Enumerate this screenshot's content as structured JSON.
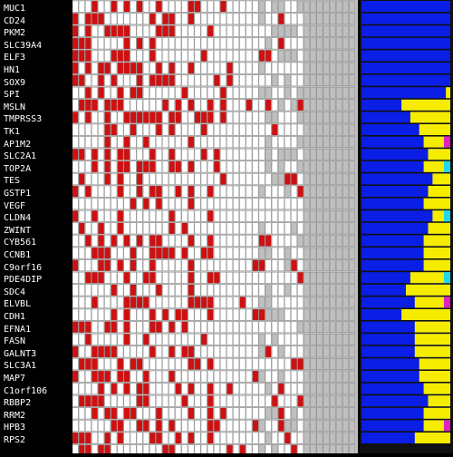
{
  "colors": {
    "background": "#000000",
    "label_text": "#ffffff",
    "cell_present": "#d01010",
    "cell_absent": "#ffffff",
    "cell_grey_bg": "#bfbfbf",
    "grid_line": "#808080",
    "bar_base": "#0a1ee6",
    "bar_segment": "#f5ec00",
    "bar_accent_cyan": "#20d8e8",
    "bar_accent_magenta": "#e020c0"
  },
  "genes": [
    "MUC1",
    "CD24",
    "PKM2",
    "SLC39A4",
    "ELF3",
    "HN1",
    "SOX9",
    "SPI",
    "MSLN",
    "TMPRSS3",
    "TK1",
    "AP1M2",
    "SLC2A1",
    "TOP2A",
    "TES",
    "GSTP1",
    "VEGF",
    "CLDN4",
    "ZWINT",
    "CYB561",
    "CCNB1",
    "C9orf16",
    "PDE4DIP",
    "SDC4",
    "ELVBL",
    "CDH1",
    "EFNA1",
    "FASN",
    "GALNT3",
    "SLC3A1",
    "MAP7",
    "C1orf106",
    "RBBP2",
    "RRM2",
    "HPB3",
    "RPS2"
  ],
  "bars": [
    {
      "yellow": 0,
      "accent": null
    },
    {
      "yellow": 0,
      "accent": null
    },
    {
      "yellow": 0,
      "accent": null
    },
    {
      "yellow": 0,
      "accent": null
    },
    {
      "yellow": 0,
      "accent": null
    },
    {
      "yellow": 0,
      "accent": null
    },
    {
      "yellow": 0,
      "accent": null
    },
    {
      "yellow": 0.05,
      "accent": null
    },
    {
      "yellow": 0.55,
      "accent": null
    },
    {
      "yellow": 0.45,
      "accent": null
    },
    {
      "yellow": 0.35,
      "accent": null
    },
    {
      "yellow": 0.3,
      "accent": "magenta"
    },
    {
      "yellow": 0.25,
      "accent": null
    },
    {
      "yellow": 0.3,
      "accent": "cyan"
    },
    {
      "yellow": 0.2,
      "accent": null
    },
    {
      "yellow": 0.25,
      "accent": null
    },
    {
      "yellow": 0.3,
      "accent": null
    },
    {
      "yellow": 0.2,
      "accent": "cyan"
    },
    {
      "yellow": 0.25,
      "accent": null
    },
    {
      "yellow": 0.3,
      "accent": null
    },
    {
      "yellow": 0.3,
      "accent": null
    },
    {
      "yellow": 0.3,
      "accent": null
    },
    {
      "yellow": 0.45,
      "accent": "cyan"
    },
    {
      "yellow": 0.5,
      "accent": null
    },
    {
      "yellow": 0.4,
      "accent": "magenta"
    },
    {
      "yellow": 0.55,
      "accent": null
    },
    {
      "yellow": 0.4,
      "accent": null
    },
    {
      "yellow": 0.4,
      "accent": null
    },
    {
      "yellow": 0.4,
      "accent": null
    },
    {
      "yellow": 0.35,
      "accent": null
    },
    {
      "yellow": 0.35,
      "accent": null
    },
    {
      "yellow": 0.3,
      "accent": null
    },
    {
      "yellow": 0.25,
      "accent": null
    },
    {
      "yellow": 0.3,
      "accent": null
    },
    {
      "yellow": 0.3,
      "accent": "magenta"
    },
    {
      "yellow": 0.4,
      "accent": null
    }
  ]
}
